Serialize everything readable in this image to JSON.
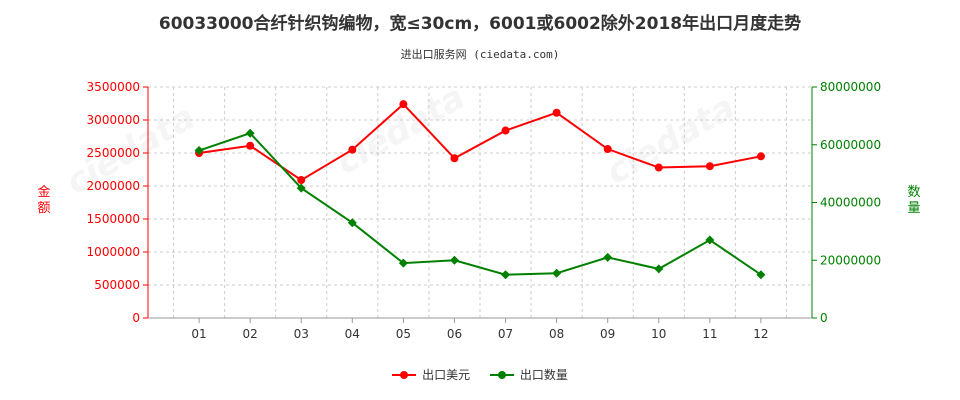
{
  "title": "60033000合纤针织钩编物，宽≤30cm，6001或6002除外2018年出口月度走势",
  "subtitle": "进出口服务网 (ciedata.com)",
  "chart_data": {
    "type": "line",
    "categories": [
      "01",
      "02",
      "03",
      "04",
      "05",
      "06",
      "07",
      "08",
      "09",
      "10",
      "11",
      "12"
    ],
    "series": [
      {
        "name": "出口美元",
        "axis": "left",
        "color": "#ff0000",
        "values": [
          2500000,
          2610000,
          2090000,
          2550000,
          3240000,
          2420000,
          2840000,
          3110000,
          2560000,
          2280000,
          2300000,
          2450000
        ]
      },
      {
        "name": "出口数量",
        "axis": "right",
        "color": "#008000",
        "values": [
          58000000,
          64000000,
          45000000,
          33000000,
          19000000,
          20000000,
          15000000,
          15500000,
          21000000,
          17000000,
          27000000,
          15000000
        ]
      }
    ],
    "y_left": {
      "label": "金额",
      "min": 0,
      "max": 3500000,
      "ticks": [
        "0",
        "500000",
        "1000000",
        "1500000",
        "2000000",
        "2500000",
        "3000000",
        "3500000"
      ]
    },
    "y_right": {
      "label": "数量",
      "min": 0,
      "max": 80000000,
      "ticks": [
        "0",
        "20000000",
        "40000000",
        "60000000",
        "80000000"
      ]
    },
    "grid": true,
    "legend_position": "bottom"
  }
}
